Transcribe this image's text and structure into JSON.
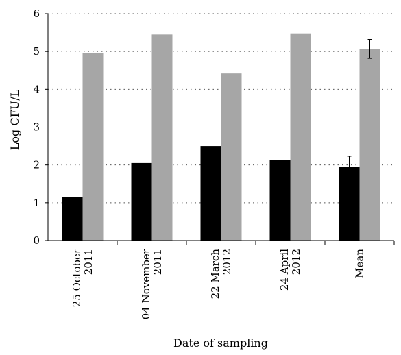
{
  "chart_data": {
    "type": "bar",
    "xlabel": "Date of sampling",
    "ylabel": "Log CFU/L",
    "ylim": [
      0,
      6
    ],
    "yticks": [
      "0",
      "1",
      "2",
      "3",
      "4",
      "5",
      "6"
    ],
    "grid": true,
    "categories": [
      [
        "25 October",
        "2011"
      ],
      [
        "04 November",
        "2011"
      ],
      [
        "22 March",
        "2012"
      ],
      [
        "24 April",
        "2012"
      ],
      [
        "Mean"
      ]
    ],
    "series": [
      {
        "color": "#000000",
        "values": [
          1.15,
          2.05,
          2.5,
          2.13,
          1.95
        ],
        "errors": [
          null,
          null,
          null,
          null,
          0.28
        ]
      },
      {
        "color": "#a6a6a6",
        "values": [
          4.95,
          5.45,
          4.42,
          5.48,
          5.07
        ],
        "errors": [
          null,
          null,
          null,
          null,
          0.25
        ]
      }
    ]
  }
}
